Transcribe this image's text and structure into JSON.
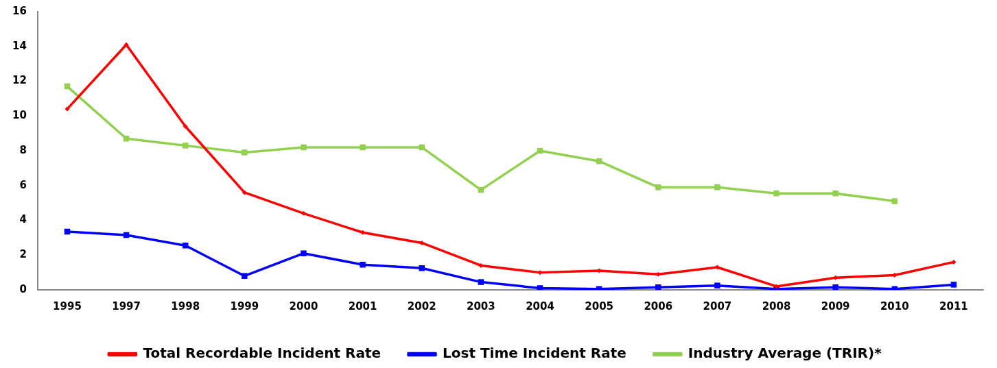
{
  "chart_data": {
    "type": "line",
    "categories": [
      "1995",
      "1997",
      "1998",
      "1999",
      "2000",
      "2001",
      "2002",
      "2003",
      "2004",
      "2005",
      "2006",
      "2007",
      "2008",
      "2009",
      "2010",
      "2011"
    ],
    "ylim": [
      0,
      16
    ],
    "yticks": [
      0,
      2,
      4,
      6,
      8,
      10,
      12,
      14,
      16
    ],
    "legend": "bottom",
    "line_style": "solid",
    "series": [
      {
        "name": "Total Recordable Incident Rate",
        "color": "#ff0000",
        "marker": "diamond",
        "values": [
          10.4,
          14.1,
          9.4,
          5.6,
          4.4,
          3.3,
          2.7,
          1.4,
          1.0,
          1.1,
          0.9,
          1.3,
          0.2,
          0.7,
          0.85,
          1.6
        ]
      },
      {
        "name": "Lost Time Incident Rate",
        "color": "#0000ff",
        "marker": "square",
        "values": [
          3.35,
          3.15,
          2.55,
          0.8,
          2.1,
          1.45,
          1.25,
          0.45,
          0.1,
          0.05,
          0.15,
          0.25,
          0.05,
          0.15,
          0.05,
          0.3
        ]
      },
      {
        "name": "Industry Average (TRIR)*",
        "color": "#92d050",
        "marker": "square",
        "values": [
          11.7,
          8.7,
          8.3,
          7.9,
          8.2,
          8.2,
          8.2,
          5.75,
          8.0,
          7.4,
          5.9,
          5.9,
          5.55,
          5.55,
          5.1,
          null
        ]
      }
    ]
  }
}
